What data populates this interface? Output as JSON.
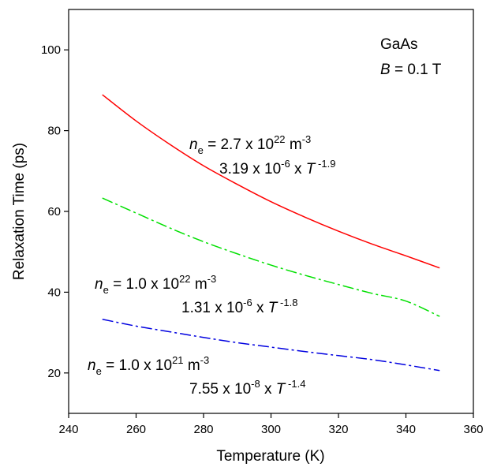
{
  "chart_data": {
    "type": "line",
    "xlabel": "Temperature (K)",
    "ylabel": "Relaxation Time (ps)",
    "xlim": [
      240,
      360
    ],
    "ylim": [
      10,
      110
    ],
    "xticks": [
      240,
      260,
      280,
      300,
      320,
      340,
      360
    ],
    "yticks": [
      20,
      40,
      60,
      80,
      100
    ],
    "grid": false,
    "series": [
      {
        "color": "#ff0000",
        "style": "solid",
        "x": [
          250,
          260,
          270,
          280,
          290,
          300,
          310,
          320,
          330,
          340,
          350
        ],
        "y": [
          88.9,
          82.4,
          76.6,
          71.3,
          66.7,
          62.4,
          58.6,
          55.1,
          51.9,
          49.0,
          46.0
        ]
      },
      {
        "color": "#00e000",
        "style": "dashdot",
        "x": [
          250,
          260,
          270,
          280,
          290,
          300,
          310,
          320,
          330,
          340,
          350
        ],
        "y": [
          63.3,
          59.6,
          55.9,
          52.5,
          49.5,
          46.7,
          44.2,
          41.9,
          39.7,
          37.8,
          34.0
        ]
      },
      {
        "color": "#0000e0",
        "style": "dashdot",
        "x": [
          250,
          260,
          270,
          280,
          290,
          300,
          310,
          320,
          330,
          340,
          350
        ],
        "y": [
          33.3,
          31.6,
          30.2,
          28.8,
          27.5,
          26.4,
          25.3,
          24.3,
          23.3,
          22.0,
          20.6
        ]
      }
    ],
    "annotations": {
      "material": "GaAs",
      "field_symbol": "B",
      "field_value": " = 0.1 T",
      "red_ne": {
        "sym": "n",
        "sub": "e",
        "text": " = 2.7 x 10",
        "exp": "22",
        "unit": " m",
        "unit_exp": "-3"
      },
      "red_fit": {
        "coef": "3.19 x 10",
        "exp": "-6",
        "mid": " x ",
        "var": "T",
        "pow": " -1.9"
      },
      "green_ne": {
        "sym": "n",
        "sub": "e",
        "text": " = 1.0 x 10",
        "exp": "22",
        "unit": " m",
        "unit_exp": "-3"
      },
      "green_fit": {
        "coef": "1.31 x 10",
        "exp": "-6",
        "mid": " x ",
        "var": "T",
        "pow": " -1.8"
      },
      "blue_ne": {
        "sym": "n",
        "sub": "e",
        "text": " = 1.0 x 10",
        "exp": "21",
        "unit": " m",
        "unit_exp": "-3"
      },
      "blue_fit": {
        "coef": "7.55 x 10",
        "exp": "-8",
        "mid": " x ",
        "var": "T",
        "pow": " -1.4"
      }
    }
  }
}
